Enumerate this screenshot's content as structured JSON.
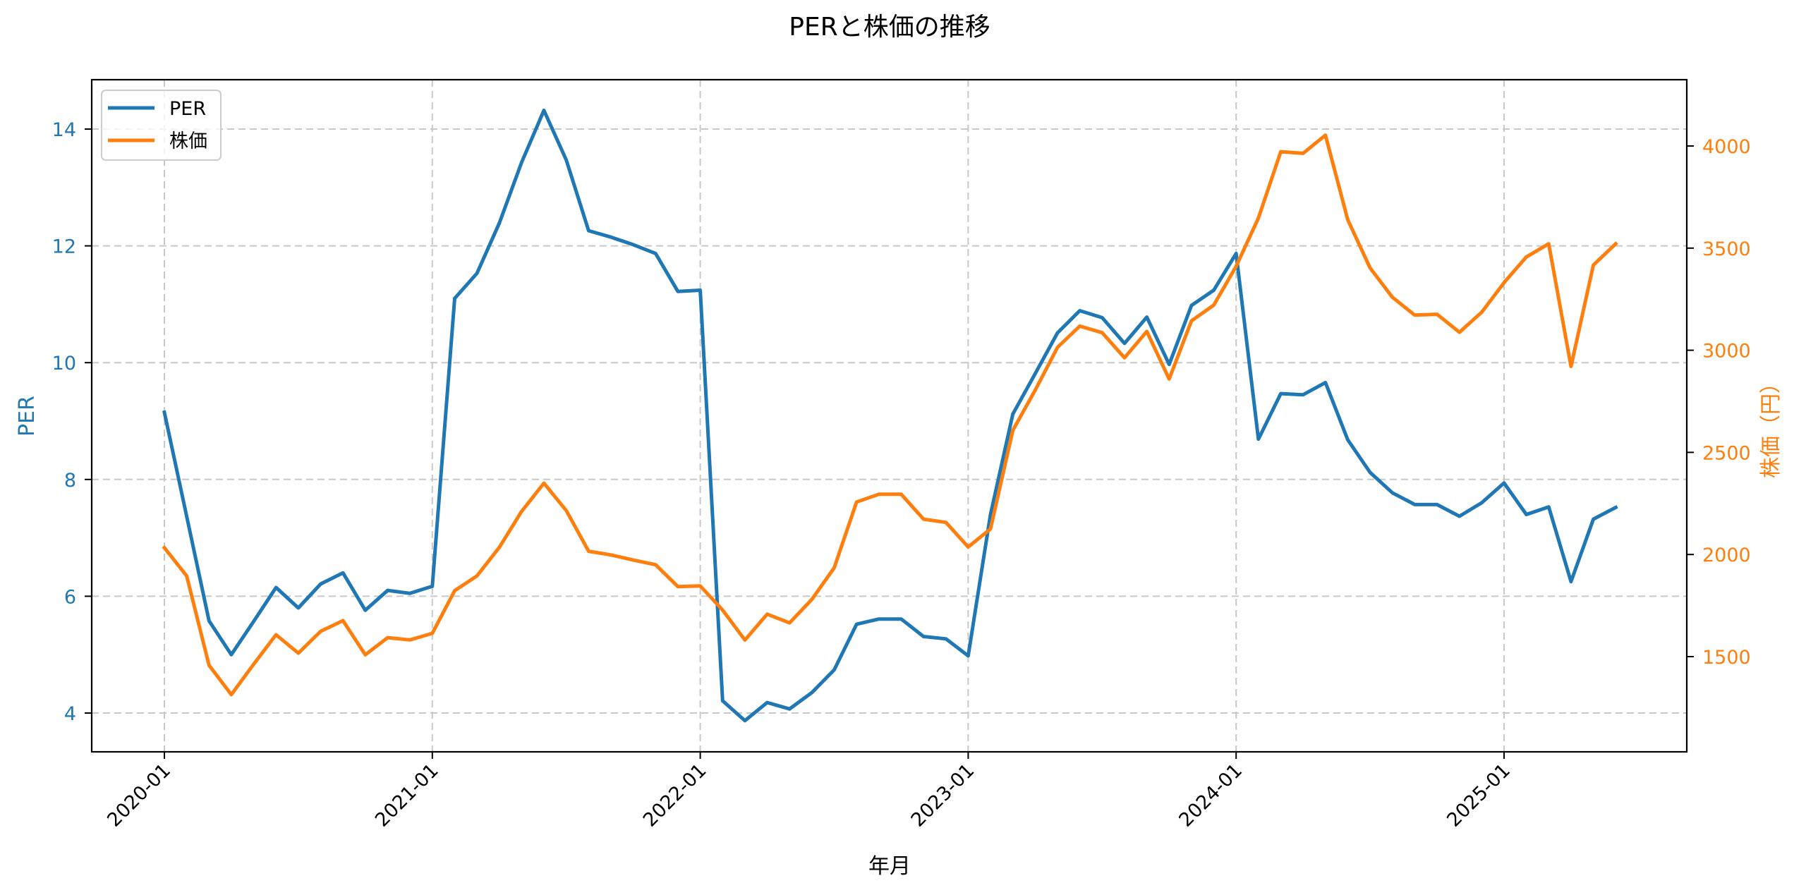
{
  "chart_data": {
    "type": "line",
    "title": "PERと株価の推移",
    "xlabel": "年月",
    "ylabel": "PER",
    "ylabel_right": "株価（円）",
    "x_tick_labels": [
      "2020-01",
      "2021-01",
      "2022-01",
      "2023-01",
      "2024-01",
      "2025-01"
    ],
    "y_ticks_left": [
      4,
      6,
      8,
      10,
      12,
      14
    ],
    "y_ticks_right": [
      1500,
      2000,
      2500,
      3000,
      3500,
      4000
    ],
    "ylim_left": [
      3.34,
      14.85
    ],
    "ylim_right": [
      1034,
      4325
    ],
    "grid": true,
    "legend_position": "upper left",
    "x": [
      "2020-01",
      "2020-02",
      "2020-03",
      "2020-04",
      "2020-05",
      "2020-06",
      "2020-07",
      "2020-08",
      "2020-09",
      "2020-10",
      "2020-11",
      "2020-12",
      "2021-01",
      "2021-02",
      "2021-03",
      "2021-04",
      "2021-05",
      "2021-06",
      "2021-07",
      "2021-08",
      "2021-09",
      "2021-10",
      "2021-11",
      "2021-12",
      "2022-01",
      "2022-02",
      "2022-03",
      "2022-04",
      "2022-05",
      "2022-06",
      "2022-07",
      "2022-08",
      "2022-09",
      "2022-10",
      "2022-11",
      "2022-12",
      "2023-01",
      "2023-02",
      "2023-03",
      "2023-04",
      "2023-05",
      "2023-06",
      "2023-07",
      "2023-08",
      "2023-09",
      "2023-10",
      "2023-11",
      "2023-12",
      "2024-01",
      "2024-02",
      "2024-03",
      "2024-04",
      "2024-05",
      "2024-06",
      "2024-07",
      "2024-08",
      "2024-09",
      "2024-10",
      "2024-11",
      "2024-12",
      "2025-01",
      "2025-02",
      "2025-03",
      "2025-04",
      "2025-05",
      "2025-06"
    ],
    "series": [
      {
        "name": "PER",
        "axis": "left",
        "color": "#1f77b4",
        "values": [
          9.15,
          7.37,
          5.58,
          5.0,
          5.57,
          6.15,
          5.8,
          6.21,
          6.4,
          5.76,
          6.1,
          6.05,
          6.17,
          11.1,
          11.53,
          12.39,
          13.43,
          14.32,
          13.47,
          12.26,
          12.15,
          12.02,
          11.87,
          11.22,
          11.24,
          4.21,
          3.87,
          4.18,
          4.07,
          4.35,
          4.74,
          5.52,
          5.61,
          5.61,
          5.31,
          5.27,
          4.98,
          7.4,
          9.12,
          9.81,
          10.51,
          10.89,
          10.77,
          10.33,
          10.78,
          9.97,
          10.98,
          11.24,
          11.87,
          8.69,
          9.47,
          9.45,
          9.66,
          8.68,
          8.12,
          7.77,
          7.57,
          7.57,
          7.37,
          7.6,
          7.94,
          7.4,
          7.53,
          6.25,
          7.32,
          7.52
        ]
      },
      {
        "name": "株価",
        "axis": "right",
        "color": "#ff7f0e",
        "values": [
          2033,
          1895,
          1458,
          1314,
          1463,
          1607,
          1517,
          1624,
          1676,
          1509,
          1593,
          1582,
          1614,
          1823,
          1895,
          2035,
          2211,
          2349,
          2215,
          2016,
          1998,
          1973,
          1950,
          1843,
          1846,
          1728,
          1581,
          1708,
          1665,
          1780,
          1935,
          2257,
          2295,
          2295,
          2173,
          2157,
          2037,
          2125,
          2608,
          2804,
          3014,
          3118,
          3086,
          2963,
          3092,
          2859,
          3144,
          3221,
          3411,
          3647,
          3972,
          3964,
          4053,
          3639,
          3403,
          3259,
          3172,
          3176,
          3088,
          3186,
          3331,
          3457,
          3521,
          2921,
          3417,
          3521
        ]
      }
    ]
  },
  "legend": {
    "items": [
      {
        "label": "PER",
        "color": "#1f77b4"
      },
      {
        "label": "株価",
        "color": "#ff7f0e"
      }
    ]
  },
  "colors": {
    "per": "#1f77b4",
    "price": "#ff7f0e",
    "grid": "#c8c8c8",
    "axis": "#000000"
  }
}
